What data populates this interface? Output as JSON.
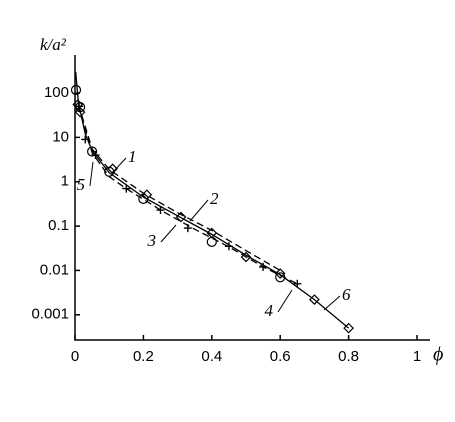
{
  "chart_data": {
    "type": "scatter",
    "y_label": "k/a²",
    "x_label": "ϕ",
    "xlim": [
      0,
      1
    ],
    "xticks": [
      0,
      0.2,
      0.4,
      0.6,
      0.8,
      1
    ],
    "ylim": [
      0.00027,
      720
    ],
    "yticks": [
      100,
      10,
      1,
      0.1,
      0.01,
      0.001
    ],
    "log_y": true,
    "annotations": [
      "1",
      "2",
      "3",
      "4",
      "5",
      "6"
    ],
    "series": [
      {
        "color": "#000000",
        "style": "solid",
        "x": [
          0.002,
          0.01,
          0.03,
          0.05,
          0.1,
          0.2,
          0.3,
          0.4,
          0.5,
          0.6,
          0.7,
          0.8
        ],
        "values": [
          300,
          60,
          12,
          5,
          1.6,
          0.45,
          0.17,
          0.065,
          0.022,
          0.008,
          0.0022,
          0.0005
        ]
      },
      {
        "color": "#000000",
        "style": "dashed",
        "x": [
          0.01,
          0.05,
          0.1,
          0.2,
          0.3,
          0.4,
          0.5,
          0.6
        ],
        "values": [
          55,
          5.5,
          1.9,
          0.55,
          0.2,
          0.08,
          0.028,
          0.01
        ]
      },
      {
        "color": "#000000",
        "style": "dashed",
        "x": [
          0.01,
          0.05,
          0.1,
          0.15,
          0.25,
          0.35,
          0.45,
          0.55,
          0.65
        ],
        "values": [
          50,
          4.5,
          1.3,
          0.7,
          0.23,
          0.085,
          0.034,
          0.012,
          0.005
        ]
      },
      {
        "color": "#000000",
        "marker": "circle",
        "x": [
          0.003,
          0.015,
          0.05,
          0.1,
          0.2,
          0.4,
          0.6
        ],
        "values": [
          117,
          48,
          4.8,
          1.68,
          0.41,
          0.044,
          0.007
        ]
      },
      {
        "color": "#000000",
        "marker": "diamond",
        "x": [
          0.008,
          0.015,
          0.11,
          0.21,
          0.31,
          0.4,
          0.5,
          0.6,
          0.7,
          0.8
        ],
        "values": [
          55,
          37,
          1.96,
          0.51,
          0.16,
          0.07,
          0.02,
          0.0085,
          0.0022,
          0.0005
        ]
      },
      {
        "color": "#000000",
        "marker": "cross",
        "x": [
          0.012,
          0.03,
          0.06,
          0.15,
          0.25,
          0.33,
          0.45,
          0.55,
          0.65
        ],
        "values": [
          50,
          9,
          4,
          0.7,
          0.23,
          0.09,
          0.035,
          0.012,
          0.005
        ]
      }
    ]
  }
}
